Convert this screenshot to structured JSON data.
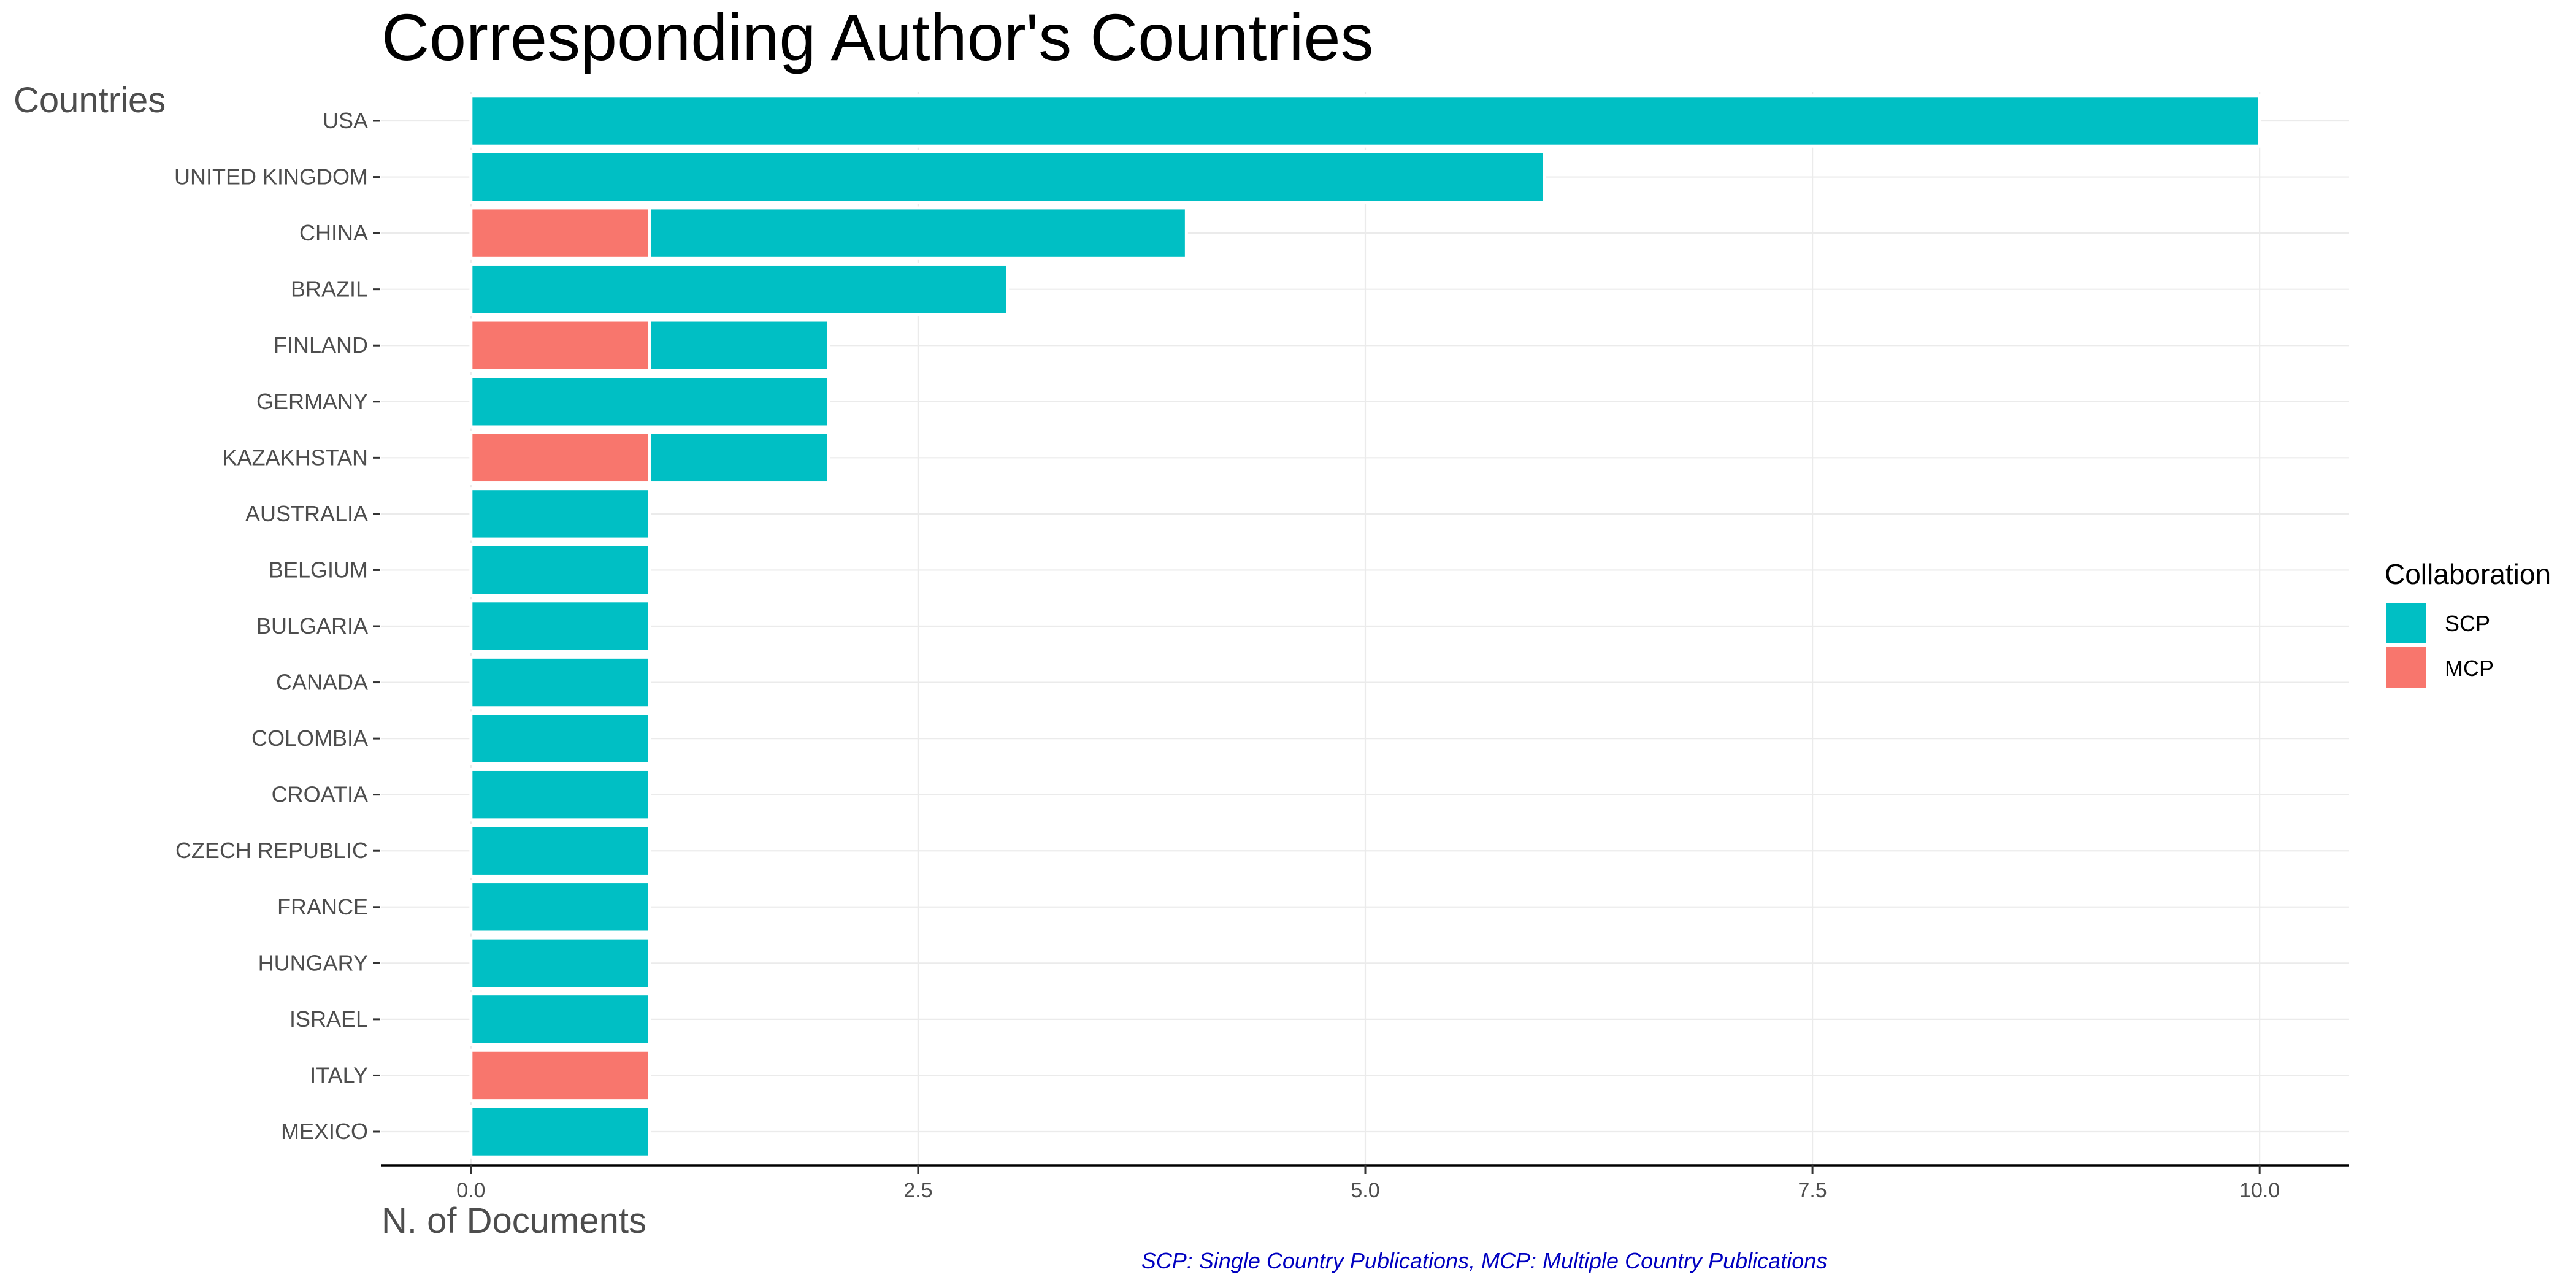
{
  "chart_data": {
    "type": "bar",
    "orientation": "horizontal",
    "stacked": true,
    "title": "Corresponding Author's Countries",
    "xlabel": "N. of Documents",
    "ylabel": "Countries",
    "caption": "SCP: Single Country Publications, MCP: Multiple Country Publications",
    "xlim": [
      0,
      10.5
    ],
    "xticks": [
      0,
      2.5,
      5,
      7.5,
      10
    ],
    "xtick_labels": [
      "0.0",
      "2.5",
      "5.0",
      "7.5",
      "10.0"
    ],
    "grid": true,
    "legend": {
      "title": "Collaboration",
      "position": "right",
      "entries": [
        {
          "label": "SCP",
          "color": "#00BFC4"
        },
        {
          "label": "MCP",
          "color": "#F8766D"
        }
      ]
    },
    "categories": [
      "USA",
      "UNITED KINGDOM",
      "CHINA",
      "BRAZIL",
      "FINLAND",
      "GERMANY",
      "KAZAKHSTAN",
      "AUSTRALIA",
      "BELGIUM",
      "BULGARIA",
      "CANADA",
      "COLOMBIA",
      "CROATIA",
      "CZECH REPUBLIC",
      "FRANCE",
      "HUNGARY",
      "ISRAEL",
      "ITALY",
      "MEXICO"
    ],
    "series": [
      {
        "name": "MCP",
        "color": "#F8766D",
        "values": [
          0,
          0,
          1,
          0,
          1,
          0,
          1,
          0,
          0,
          0,
          0,
          0,
          0,
          0,
          0,
          0,
          0,
          1,
          0
        ]
      },
      {
        "name": "SCP",
        "color": "#00BFC4",
        "values": [
          10,
          6,
          3,
          3,
          1,
          2,
          1,
          1,
          1,
          1,
          1,
          1,
          1,
          1,
          1,
          1,
          1,
          0,
          1
        ]
      }
    ]
  }
}
